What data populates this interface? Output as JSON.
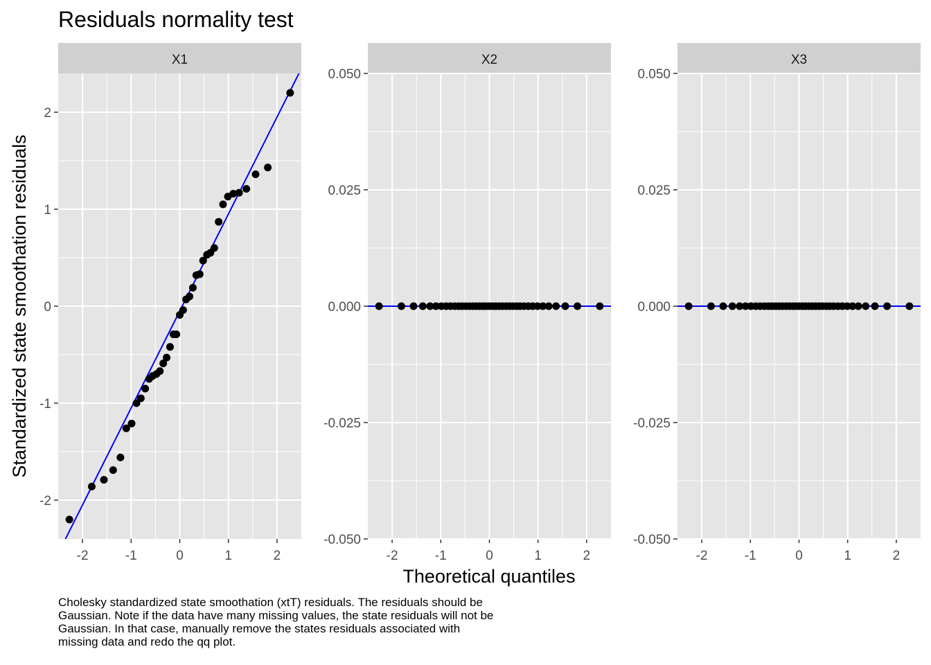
{
  "title": "Residuals normality test",
  "xlabel": "Theoretical quantiles",
  "ylabel": "Standardized state smoothation residuals",
  "caption": "Cholesky standardized state smoothation (xtT) residuals. The residuals should be Gaussian. Note if the data have many missing values, the state residuals will not be Gaussian. In that case, manually remove the states residuals associated with missing data and redo the qq plot.",
  "colors": {
    "panel_bg": "#e5e5e5",
    "strip_bg": "#d0d0d0",
    "grid": "#ffffff",
    "points": "#000000",
    "line": "#0000ff"
  },
  "chart_data": [
    {
      "type": "scatter",
      "panel": "X1",
      "x": [
        -2.27,
        -1.81,
        -1.56,
        -1.37,
        -1.22,
        -1.1,
        -0.99,
        -0.89,
        -0.8,
        -0.71,
        -0.63,
        -0.56,
        -0.48,
        -0.41,
        -0.34,
        -0.27,
        -0.2,
        -0.13,
        -0.07,
        0.0,
        0.07,
        0.13,
        0.2,
        0.27,
        0.34,
        0.41,
        0.48,
        0.56,
        0.63,
        0.71,
        0.8,
        0.89,
        0.99,
        1.1,
        1.22,
        1.37,
        1.56,
        1.81,
        2.27
      ],
      "y": [
        -2.2,
        -1.86,
        -1.79,
        -1.69,
        -1.56,
        -1.26,
        -1.21,
        -1.0,
        -0.95,
        -0.85,
        -0.75,
        -0.72,
        -0.7,
        -0.67,
        -0.59,
        -0.53,
        -0.42,
        -0.29,
        -0.29,
        -0.09,
        -0.04,
        0.07,
        0.1,
        0.19,
        0.32,
        0.33,
        0.47,
        0.53,
        0.55,
        0.6,
        0.87,
        1.05,
        1.13,
        1.16,
        1.17,
        1.21,
        1.36,
        1.43,
        2.2
      ],
      "qqline": {
        "intercept": -0.05,
        "slope": 1.0
      },
      "xlim": [
        -2.5,
        2.5
      ],
      "ylim": [
        -2.4,
        2.4
      ],
      "xticks": [
        "-2",
        "-1",
        "0",
        "1",
        "2"
      ],
      "yticks": [
        "-2",
        "-1",
        "0",
        "1",
        "2"
      ]
    },
    {
      "type": "scatter",
      "panel": "X2",
      "x": [
        -2.27,
        -1.81,
        -1.56,
        -1.37,
        -1.22,
        -1.1,
        -0.99,
        -0.89,
        -0.8,
        -0.71,
        -0.63,
        -0.56,
        -0.48,
        -0.41,
        -0.34,
        -0.27,
        -0.2,
        -0.13,
        -0.07,
        0.0,
        0.07,
        0.13,
        0.2,
        0.27,
        0.34,
        0.41,
        0.48,
        0.56,
        0.63,
        0.71,
        0.8,
        0.89,
        0.99,
        1.1,
        1.22,
        1.37,
        1.56,
        1.81,
        2.27
      ],
      "y": [
        0,
        0,
        0,
        0,
        0,
        0,
        0,
        0,
        0,
        0,
        0,
        0,
        0,
        0,
        0,
        0,
        0,
        0,
        0,
        0,
        0,
        0,
        0,
        0,
        0,
        0,
        0,
        0,
        0,
        0,
        0,
        0,
        0,
        0,
        0,
        0,
        0,
        0,
        0
      ],
      "qqline": {
        "intercept": 0.0,
        "slope": 0.0
      },
      "xlim": [
        -2.5,
        2.5
      ],
      "ylim": [
        -0.05,
        0.05
      ],
      "xticks": [
        "-2",
        "-1",
        "0",
        "1",
        "2"
      ],
      "yticks": [
        "-0.050",
        "-0.025",
        "0.000",
        "0.025",
        "0.050"
      ]
    },
    {
      "type": "scatter",
      "panel": "X3",
      "x": [
        -2.27,
        -1.81,
        -1.56,
        -1.37,
        -1.22,
        -1.1,
        -0.99,
        -0.89,
        -0.8,
        -0.71,
        -0.63,
        -0.56,
        -0.48,
        -0.41,
        -0.34,
        -0.27,
        -0.2,
        -0.13,
        -0.07,
        0.0,
        0.07,
        0.13,
        0.2,
        0.27,
        0.34,
        0.41,
        0.48,
        0.56,
        0.63,
        0.71,
        0.8,
        0.89,
        0.99,
        1.1,
        1.22,
        1.37,
        1.56,
        1.81,
        2.27
      ],
      "y": [
        0,
        0,
        0,
        0,
        0,
        0,
        0,
        0,
        0,
        0,
        0,
        0,
        0,
        0,
        0,
        0,
        0,
        0,
        0,
        0,
        0,
        0,
        0,
        0,
        0,
        0,
        0,
        0,
        0,
        0,
        0,
        0,
        0,
        0,
        0,
        0,
        0,
        0,
        0
      ],
      "qqline": {
        "intercept": 0.0,
        "slope": 0.0
      },
      "xlim": [
        -2.5,
        2.5
      ],
      "ylim": [
        -0.05,
        0.05
      ],
      "xticks": [
        "-2",
        "-1",
        "0",
        "1",
        "2"
      ],
      "yticks": [
        "-0.050",
        "-0.025",
        "0.000",
        "0.025",
        "0.050"
      ]
    }
  ]
}
